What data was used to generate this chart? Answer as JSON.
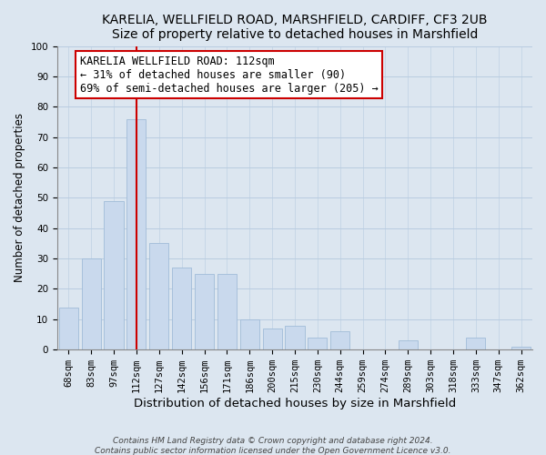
{
  "title": "KARELIA, WELLFIELD ROAD, MARSHFIELD, CARDIFF, CF3 2UB",
  "subtitle": "Size of property relative to detached houses in Marshfield",
  "xlabel": "Distribution of detached houses by size in Marshfield",
  "ylabel": "Number of detached properties",
  "bar_labels": [
    "68sqm",
    "83sqm",
    "97sqm",
    "112sqm",
    "127sqm",
    "142sqm",
    "156sqm",
    "171sqm",
    "186sqm",
    "200sqm",
    "215sqm",
    "230sqm",
    "244sqm",
    "259sqm",
    "274sqm",
    "289sqm",
    "303sqm",
    "318sqm",
    "333sqm",
    "347sqm",
    "362sqm"
  ],
  "bar_values": [
    14,
    30,
    49,
    76,
    35,
    27,
    25,
    25,
    10,
    7,
    8,
    4,
    6,
    0,
    0,
    3,
    0,
    0,
    4,
    0,
    1
  ],
  "bar_color": "#c9d9ed",
  "bar_edge_color": "#a0bcd8",
  "vline_x": 3,
  "vline_color": "#cc0000",
  "annotation_text": "KARELIA WELLFIELD ROAD: 112sqm\n← 31% of detached houses are smaller (90)\n69% of semi-detached houses are larger (205) →",
  "annotation_box_edgecolor": "#cc0000",
  "annotation_box_facecolor": "#ffffff",
  "bg_color": "#dce6f0",
  "plot_bg_color": "#dce6f0",
  "ylim": [
    0,
    100
  ],
  "footer1": "Contains HM Land Registry data © Crown copyright and database right 2024.",
  "footer2": "Contains public sector information licensed under the Open Government Licence v3.0.",
  "title_fontsize": 10,
  "subtitle_fontsize": 9.5,
  "xlabel_fontsize": 9.5,
  "ylabel_fontsize": 8.5,
  "tick_fontsize": 7.5,
  "annotation_fontsize": 8.5,
  "footer_fontsize": 6.5
}
